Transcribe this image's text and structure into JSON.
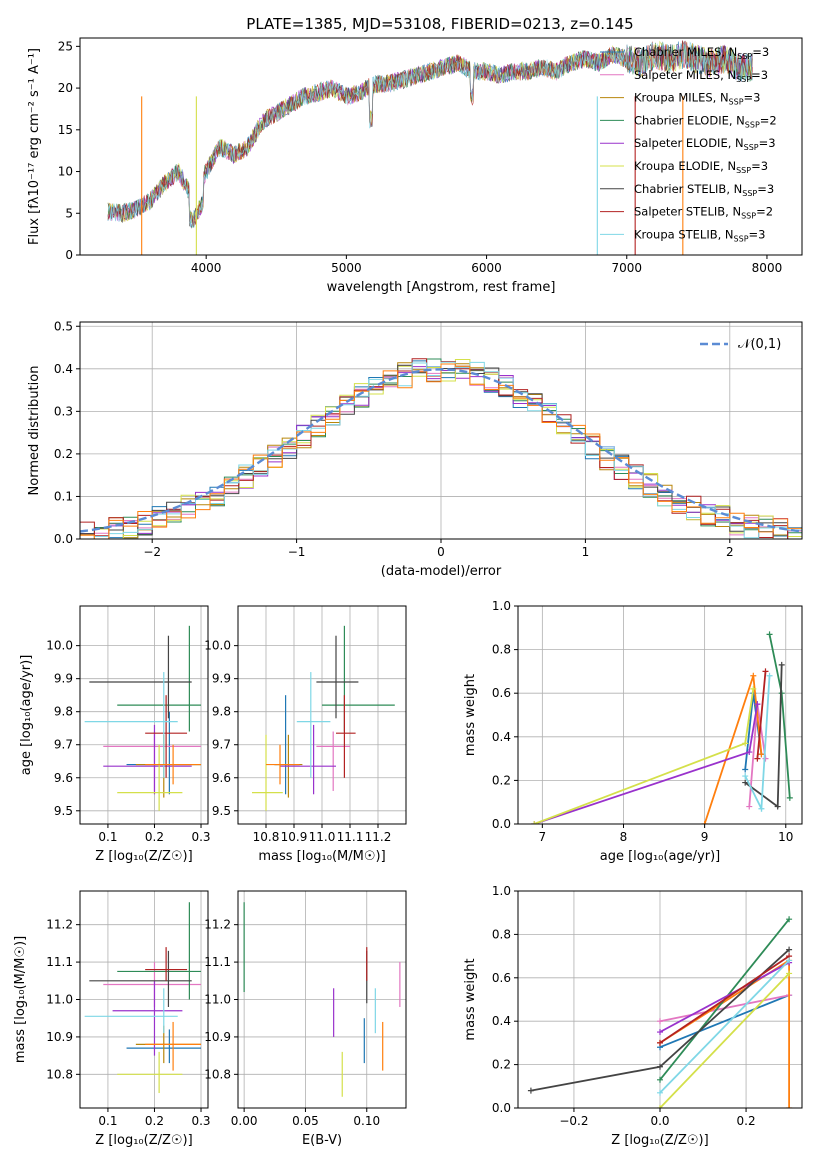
{
  "title": "PLATE=1385, MJD=53108, FIBERID=0213, z=0.145",
  "legend_spectrum": [
    {
      "label": "Chabrier MILES, N",
      "sub": "SSP",
      "suffix": "=3",
      "color": "#1f77b4"
    },
    {
      "label": "Salpeter MILES, N",
      "sub": "SSP",
      "suffix": "=3",
      "color": "#e377c2"
    },
    {
      "label": "Kroupa MILES, N",
      "sub": "SSP",
      "suffix": "=3",
      "color": "#b8860b"
    },
    {
      "label": "Chabrier ELODIE, N",
      "sub": "SSP",
      "suffix": "=2",
      "color": "#2e8b57"
    },
    {
      "label": "Salpeter ELODIE, N",
      "sub": "SSP",
      "suffix": "=3",
      "color": "#9932cc"
    },
    {
      "label": "Kroupa ELODIE, N",
      "sub": "SSP",
      "suffix": "=3",
      "color": "#d4e04a"
    },
    {
      "label": "Chabrier STELIB, N",
      "sub": "SSP",
      "suffix": "=3",
      "color": "#444444"
    },
    {
      "label": "Salpeter STELIB, N",
      "sub": "SSP",
      "suffix": "=2",
      "color": "#b22222"
    },
    {
      "label": "Kroupa STELIB, N",
      "sub": "SSP",
      "suffix": "=3",
      "color": "#7fd7e6"
    }
  ],
  "chart_data": [
    {
      "id": "spectrum",
      "type": "line",
      "xlabel": "wavelength [Angstrom, rest frame]",
      "ylabel": "Flux [f",
      "ylabel_full": "Flux [fλ10⁻¹⁷ erg cm⁻² s⁻¹ A⁻¹]",
      "xlim": [
        3100,
        8250
      ],
      "ylim": [
        0,
        26
      ],
      "xticks": [
        4000,
        5000,
        6000,
        7000,
        8000
      ],
      "yticks": [
        0,
        5,
        10,
        15,
        20,
        25
      ],
      "x": [
        3300,
        3400,
        3500,
        3600,
        3700,
        3800,
        3900,
        4000,
        4100,
        4200,
        4300,
        4400,
        4500,
        4600,
        4700,
        4800,
        4900,
        5000,
        5100,
        5200,
        5300,
        5400,
        5500,
        5600,
        5700,
        5800,
        5900,
        6000,
        6100,
        6200,
        6300,
        6400,
        6500,
        6600,
        6700,
        6800,
        6900,
        7000,
        7100,
        7200,
        7300,
        7400,
        7500,
        7600,
        7700,
        7800
      ],
      "y": [
        5.2,
        5.0,
        5.5,
        6.5,
        8.5,
        10,
        7,
        10,
        13,
        12,
        13,
        16,
        17,
        18,
        19,
        19.5,
        20,
        19,
        19.5,
        20.5,
        20.5,
        21,
        21.5,
        22,
        22.5,
        23,
        22,
        22,
        21.5,
        22,
        22,
        22.5,
        22,
        23,
        23.5,
        23,
        24,
        23.5,
        23,
        24,
        23.5,
        24,
        23.5,
        23,
        23.5,
        22.5
      ]
    },
    {
      "id": "residuals",
      "type": "area",
      "xlabel": "(data-model)/error",
      "ylabel": "Normed distribution",
      "xlim": [
        -2.5,
        2.5
      ],
      "ylim": [
        0,
        0.51
      ],
      "xticks": [
        -2,
        -1,
        0,
        1,
        2
      ],
      "xtick_labels": [
        "−2",
        "−1",
        "0",
        "1",
        "2"
      ],
      "yticks": [
        0,
        0.1,
        0.2,
        0.3,
        0.4,
        0.5
      ],
      "ytick_labels": [
        "0.0",
        "0.1",
        "0.2",
        "0.3",
        "0.4",
        "0.5"
      ],
      "legend": "𝒩(0,1)",
      "series_colors": [
        "#1f77b4",
        "#e377c2",
        "#b8860b",
        "#2e8b57",
        "#9932cc",
        "#d4e04a",
        "#444444",
        "#b22222",
        "#7fd7e6",
        "#ff7f0e"
      ]
    },
    {
      "id": "age_vs_Z",
      "type": "scatter",
      "xlabel": "Z [log₁₀(Z/Z☉)]",
      "ylabel": "age  [log₁₀(age/yr)]",
      "xlim": [
        0.04,
        0.315
      ],
      "ylim": [
        9.46,
        10.12
      ],
      "xticks": [
        0.1,
        0.2,
        0.3
      ],
      "xtick_labels": [
        "0.1",
        "0.2",
        "0.3"
      ],
      "yticks": [
        9.5,
        9.6,
        9.7,
        9.8,
        9.9,
        10.0
      ],
      "ytick_labels": [
        "9.5",
        "9.6",
        "9.7",
        "9.8",
        "9.9",
        "10.0"
      ],
      "points": [
        {
          "x": 0.232,
          "y": 9.64,
          "xerr": [
            0.14,
            0.3
          ],
          "yerr": [
            9.55,
            9.8
          ],
          "color": "#1f77b4"
        },
        {
          "x": 0.2,
          "y": 9.695,
          "xerr": [
            0.09,
            0.3
          ],
          "yerr": [
            9.56,
            9.74
          ],
          "color": "#e377c2"
        },
        {
          "x": 0.22,
          "y": 9.64,
          "xerr": [
            0.16,
            0.3
          ],
          "yerr": [
            9.54,
            9.73
          ],
          "color": "#b8860b"
        },
        {
          "x": 0.275,
          "y": 9.82,
          "xerr": [
            0.12,
            0.3
          ],
          "yerr": [
            9.74,
            10.06
          ],
          "color": "#2e8b57"
        },
        {
          "x": 0.2,
          "y": 9.635,
          "xerr": [
            0.09,
            0.28
          ],
          "yerr": [
            9.55,
            9.76
          ],
          "color": "#9932cc"
        },
        {
          "x": 0.21,
          "y": 9.555,
          "xerr": [
            0.12,
            0.26
          ],
          "yerr": [
            9.5,
            9.7
          ],
          "color": "#d4e04a"
        },
        {
          "x": 0.23,
          "y": 9.89,
          "xerr": [
            0.06,
            0.28
          ],
          "yerr": [
            9.78,
            10.03
          ],
          "color": "#444444"
        },
        {
          "x": 0.225,
          "y": 9.735,
          "xerr": [
            0.18,
            0.27
          ],
          "yerr": [
            9.6,
            9.85
          ],
          "color": "#b22222"
        },
        {
          "x": 0.22,
          "y": 9.77,
          "xerr": [
            0.05,
            0.25
          ],
          "yerr": [
            9.6,
            9.92
          ],
          "color": "#7fd7e6"
        },
        {
          "x": 0.24,
          "y": 9.64,
          "xerr": [
            0.18,
            0.3
          ],
          "yerr": [
            9.58,
            9.7
          ],
          "color": "#ff7f0e"
        }
      ]
    },
    {
      "id": "age_vs_mass",
      "type": "scatter",
      "xlabel": "mass [log₁₀(M/M☉)]",
      "ylabel": "",
      "xlim": [
        10.7,
        11.3
      ],
      "ylim": [
        9.46,
        10.12
      ],
      "xticks": [
        10.8,
        10.9,
        11.0,
        11.1,
        11.2
      ],
      "xtick_labels": [
        "10.8",
        "10.9",
        "11.0",
        "11.1",
        "11.2"
      ],
      "yticks": [
        9.5,
        9.6,
        9.7,
        9.8,
        9.9,
        10.0
      ],
      "ytick_labels": [
        "9.5",
        "9.6",
        "9.7",
        "9.8",
        "9.9",
        "10.0"
      ],
      "points": [
        {
          "x": 10.87,
          "y": 9.64,
          "xerr": [
            10.83,
            10.92
          ],
          "yerr": [
            9.55,
            9.85
          ],
          "color": "#1f77b4"
        },
        {
          "x": 11.04,
          "y": 9.695,
          "xerr": [
            10.98,
            11.1
          ],
          "yerr": [
            9.56,
            9.74
          ],
          "color": "#e377c2"
        },
        {
          "x": 10.88,
          "y": 9.64,
          "xerr": [
            10.83,
            10.93
          ],
          "yerr": [
            9.54,
            9.73
          ],
          "color": "#b8860b"
        },
        {
          "x": 11.08,
          "y": 9.82,
          "xerr": [
            11.0,
            11.26
          ],
          "yerr": [
            9.74,
            10.06
          ],
          "color": "#2e8b57"
        },
        {
          "x": 10.97,
          "y": 9.635,
          "xerr": [
            10.85,
            11.05
          ],
          "yerr": [
            9.55,
            9.76
          ],
          "color": "#9932cc"
        },
        {
          "x": 10.8,
          "y": 9.555,
          "xerr": [
            10.75,
            10.86
          ],
          "yerr": [
            9.5,
            9.73
          ],
          "color": "#d4e04a"
        },
        {
          "x": 11.05,
          "y": 9.89,
          "xerr": [
            10.98,
            11.13
          ],
          "yerr": [
            9.78,
            10.03
          ],
          "color": "#444444"
        },
        {
          "x": 11.08,
          "y": 9.735,
          "xerr": [
            11.05,
            11.12
          ],
          "yerr": [
            9.6,
            9.85
          ],
          "color": "#b22222"
        },
        {
          "x": 10.96,
          "y": 9.77,
          "xerr": [
            10.91,
            11.03
          ],
          "yerr": [
            9.6,
            9.92
          ],
          "color": "#7fd7e6"
        },
        {
          "x": 10.85,
          "y": 9.64,
          "xerr": [
            10.8,
            10.92
          ],
          "yerr": [
            9.58,
            9.7
          ],
          "color": "#ff7f0e"
        }
      ]
    },
    {
      "id": "mass_weight_vs_age",
      "type": "line",
      "xlabel": "age  [log₁₀(age/yr)]",
      "ylabel": "mass weight",
      "xlim": [
        6.7,
        10.2
      ],
      "ylim": [
        0,
        1.0
      ],
      "xticks": [
        7,
        8,
        9,
        10
      ],
      "xtick_labels": [
        "7",
        "8",
        "9",
        "10"
      ],
      "yticks": [
        0,
        0.2,
        0.4,
        0.6,
        0.8,
        1.0
      ],
      "ytick_labels": [
        "0.0",
        "0.2",
        "0.4",
        "0.6",
        "0.8",
        "1.0"
      ],
      "series": [
        {
          "x": [
            9.5,
            9.6,
            9.7
          ],
          "y": [
            0.25,
            0.6,
            0.32
          ],
          "color": "#1f77b4"
        },
        {
          "x": [
            9.55,
            9.65,
            9.75
          ],
          "y": [
            0.08,
            0.55,
            0.3
          ],
          "color": "#e377c2"
        },
        {
          "x": [
            9.0,
            9.6,
            9.7
          ],
          "y": [
            0.0,
            0.68,
            0.32
          ],
          "color": "#ff7f0e"
        },
        {
          "x": [
            9.8,
            9.95,
            10.05
          ],
          "y": [
            0.87,
            0.6,
            0.12
          ],
          "color": "#2e8b57"
        },
        {
          "x": 6.9,
          "x_all": [
            6.9,
            9.55,
            9.65
          ],
          "y": [
            0,
            0.33,
            0.55
          ],
          "color": "#9932cc"
        },
        {
          "x": [
            6.9,
            9.5,
            9.6
          ],
          "y": [
            0,
            0.37,
            0.62
          ],
          "color": "#d4e04a"
        },
        {
          "x": [
            9.5,
            9.9,
            9.95
          ],
          "y": [
            0.19,
            0.08,
            0.73
          ],
          "color": "#444444"
        },
        {
          "x": [
            9.65,
            9.75
          ],
          "y": [
            0.3,
            0.7
          ],
          "color": "#b22222"
        },
        {
          "x": [
            9.5,
            9.7,
            9.8
          ],
          "y": [
            0.22,
            0.07,
            0.68
          ],
          "color": "#7fd7e6"
        }
      ]
    },
    {
      "id": "mass_vs_Z",
      "type": "scatter",
      "xlabel": "Z [log₁₀(Z/Z☉)]",
      "ylabel": "mass [log₁₀(M/M☉)]",
      "xlim": [
        0.04,
        0.315
      ],
      "ylim": [
        10.71,
        11.29
      ],
      "xticks": [
        0.1,
        0.2,
        0.3
      ],
      "xtick_labels": [
        "0.1",
        "0.2",
        "0.3"
      ],
      "yticks": [
        10.8,
        10.9,
        11.0,
        11.1,
        11.2
      ],
      "ytick_labels": [
        "10.8",
        "10.9",
        "11.0",
        "11.1",
        "11.2"
      ],
      "points": [
        {
          "x": 0.232,
          "y": 10.87,
          "xerr": [
            0.14,
            0.3
          ],
          "yerr": [
            10.83,
            10.92
          ],
          "color": "#1f77b4"
        },
        {
          "x": 0.2,
          "y": 11.04,
          "xerr": [
            0.09,
            0.3
          ],
          "yerr": [
            10.98,
            11.1
          ],
          "color": "#e377c2"
        },
        {
          "x": 0.22,
          "y": 10.88,
          "xerr": [
            0.16,
            0.3
          ],
          "yerr": [
            10.83,
            10.93
          ],
          "color": "#b8860b"
        },
        {
          "x": 0.275,
          "y": 11.075,
          "xerr": [
            0.12,
            0.3
          ],
          "yerr": [
            11.0,
            11.26
          ],
          "color": "#2e8b57"
        },
        {
          "x": 0.2,
          "y": 10.97,
          "xerr": [
            0.11,
            0.26
          ],
          "yerr": [
            10.85,
            11.05
          ],
          "color": "#9932cc"
        },
        {
          "x": 0.21,
          "y": 10.8,
          "xerr": [
            0.12,
            0.26
          ],
          "yerr": [
            10.75,
            10.86
          ],
          "color": "#d4e04a"
        },
        {
          "x": 0.23,
          "y": 11.05,
          "xerr": [
            0.06,
            0.28
          ],
          "yerr": [
            10.98,
            11.13
          ],
          "color": "#444444"
        },
        {
          "x": 0.225,
          "y": 11.08,
          "xerr": [
            0.18,
            0.27
          ],
          "yerr": [
            11.05,
            11.14
          ],
          "color": "#b22222"
        },
        {
          "x": 0.22,
          "y": 10.955,
          "xerr": [
            0.05,
            0.25
          ],
          "yerr": [
            10.91,
            11.03
          ],
          "color": "#7fd7e6"
        },
        {
          "x": 0.24,
          "y": 10.88,
          "xerr": [
            0.18,
            0.3
          ],
          "yerr": [
            10.81,
            10.94
          ],
          "color": "#ff7f0e"
        }
      ]
    },
    {
      "id": "mass_vs_EBV",
      "type": "scatter",
      "xlabel": "E(B-V)",
      "ylabel": "",
      "xlim": [
        -0.005,
        0.132
      ],
      "ylim": [
        10.71,
        11.29
      ],
      "xticks": [
        0.0,
        0.05,
        0.1
      ],
      "xtick_labels": [
        "0.00",
        "0.05",
        "0.10"
      ],
      "yticks": [
        10.8,
        10.9,
        11.0,
        11.1,
        11.2
      ],
      "ytick_labels": [
        "10.8",
        "10.9",
        "11.0",
        "11.1",
        "11.2"
      ],
      "points": [
        {
          "x": 0.0,
          "y": 11.14,
          "xerr": null,
          "yerr": [
            11.02,
            11.26
          ],
          "color": "#2e8b57"
        },
        {
          "x": 0.073,
          "y": 10.96,
          "xerr": null,
          "yerr": [
            10.9,
            11.03
          ],
          "color": "#9932cc"
        },
        {
          "x": 0.08,
          "y": 10.8,
          "xerr": null,
          "yerr": [
            10.74,
            10.86
          ],
          "color": "#d4e04a"
        },
        {
          "x": 0.1,
          "y": 11.06,
          "xerr": null,
          "yerr": [
            10.99,
            11.13
          ],
          "color": "#444444"
        },
        {
          "x": 0.1,
          "y": 11.09,
          "xerr": null,
          "yerr": [
            11.05,
            11.14
          ],
          "color": "#b22222"
        },
        {
          "x": 0.107,
          "y": 10.95,
          "xerr": null,
          "yerr": [
            10.91,
            11.03
          ],
          "color": "#7fd7e6"
        },
        {
          "x": 0.113,
          "y": 10.88,
          "xerr": null,
          "yerr": [
            10.81,
            10.94
          ],
          "color": "#ff7f0e"
        },
        {
          "x": 0.098,
          "y": 10.87,
          "xerr": null,
          "yerr": [
            10.83,
            10.95
          ],
          "color": "#1f77b4"
        },
        {
          "x": 0.127,
          "y": 11.04,
          "xerr": null,
          "yerr": [
            10.98,
            11.1
          ],
          "color": "#e377c2"
        }
      ]
    },
    {
      "id": "mass_weight_vs_Z",
      "type": "line",
      "xlabel": "Z [log₁₀(Z/Z☉)]",
      "ylabel": "mass weight",
      "xlim": [
        -0.33,
        0.33
      ],
      "ylim": [
        0,
        1.0
      ],
      "xticks": [
        -0.2,
        0.0,
        0.2
      ],
      "xtick_labels": [
        "−0.2",
        "0.0",
        "0.2"
      ],
      "yticks": [
        0,
        0.2,
        0.4,
        0.6,
        0.8,
        1.0
      ],
      "ytick_labels": [
        "0.0",
        "0.2",
        "0.4",
        "0.6",
        "0.8",
        "1.0"
      ],
      "series": [
        {
          "x": [
            0,
            0.3
          ],
          "y": [
            0.28,
            0.52
          ],
          "color": "#1f77b4"
        },
        {
          "x": [
            0,
            0.3
          ],
          "y": [
            0.4,
            0.52
          ],
          "color": "#e377c2"
        },
        {
          "x": [
            0,
            0.3,
            0.3
          ],
          "y": [
            0.3,
            0.68,
            0.0
          ],
          "color": "#ff7f0e"
        },
        {
          "x": [
            0,
            0.3
          ],
          "y": [
            0.13,
            0.87
          ],
          "color": "#2e8b57"
        },
        {
          "x": [
            0,
            0.3
          ],
          "y": [
            0.35,
            0.67
          ],
          "color": "#9932cc"
        },
        {
          "x": [
            0,
            0.3
          ],
          "y": [
            0.0,
            0.62
          ],
          "color": "#d4e04a"
        },
        {
          "x": [
            -0.3,
            0,
            0.3
          ],
          "y": [
            0.08,
            0.19,
            0.73
          ],
          "color": "#444444"
        },
        {
          "x": [
            0,
            0.3
          ],
          "y": [
            0.3,
            0.7
          ],
          "color": "#b22222"
        },
        {
          "x": [
            0,
            0.3
          ],
          "y": [
            0.07,
            0.68
          ],
          "color": "#7fd7e6"
        }
      ]
    }
  ]
}
